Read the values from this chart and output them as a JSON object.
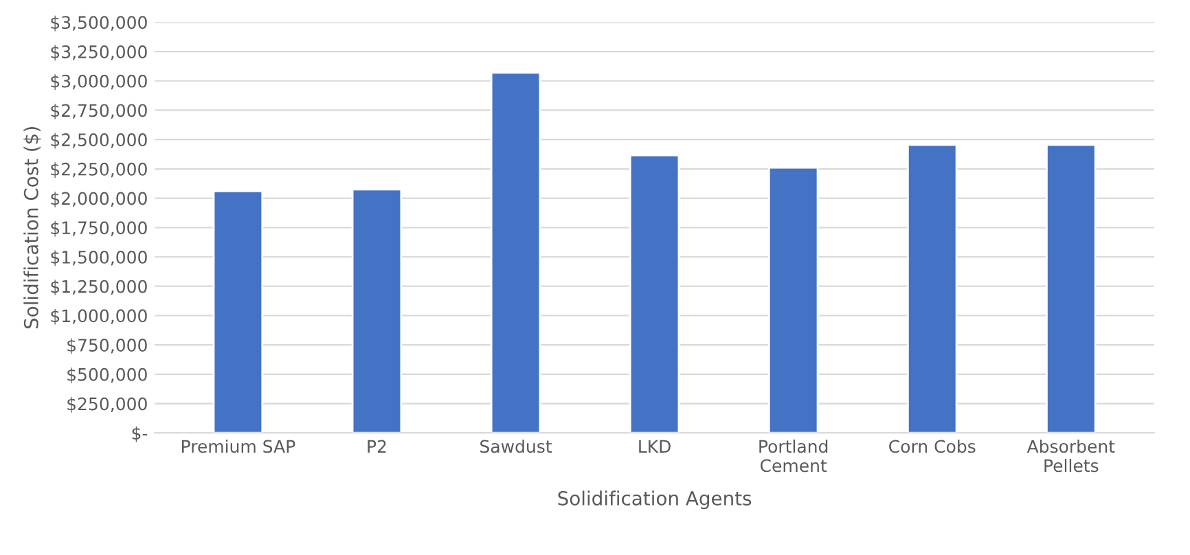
{
  "chart_data": {
    "type": "bar",
    "xlabel": "Solidification Agents",
    "ylabel": "Solidification Cost ($)",
    "categories": [
      "Premium SAP",
      "P2",
      "Sawdust",
      "LKD",
      "Portland\nCement",
      "Corn Cobs",
      "Absorbent\nPellets"
    ],
    "values": [
      2060000,
      2075000,
      3070000,
      2365000,
      2260000,
      2455000,
      2455000
    ],
    "color": "#4472c4",
    "ylim": [
      0,
      3500000
    ],
    "yticks": [
      {
        "value": 0,
        "label": "$-"
      },
      {
        "value": 250000,
        "label": "$250,000"
      },
      {
        "value": 500000,
        "label": "$500,000"
      },
      {
        "value": 750000,
        "label": "$750,000"
      },
      {
        "value": 1000000,
        "label": "$1,000,000"
      },
      {
        "value": 1250000,
        "label": "$1,250,000"
      },
      {
        "value": 1500000,
        "label": "$1,500,000"
      },
      {
        "value": 1750000,
        "label": "$1,750,000"
      },
      {
        "value": 2000000,
        "label": "$2,000,000"
      },
      {
        "value": 2250000,
        "label": "$2,250,000"
      },
      {
        "value": 2500000,
        "label": "$2,500,000"
      },
      {
        "value": 2750000,
        "label": "$2,750,000"
      },
      {
        "value": 3000000,
        "label": "$3,000,000"
      },
      {
        "value": 3250000,
        "label": "$3,250,000"
      },
      {
        "value": 3500000,
        "label": "$3,500,000"
      }
    ],
    "grid": "y"
  }
}
